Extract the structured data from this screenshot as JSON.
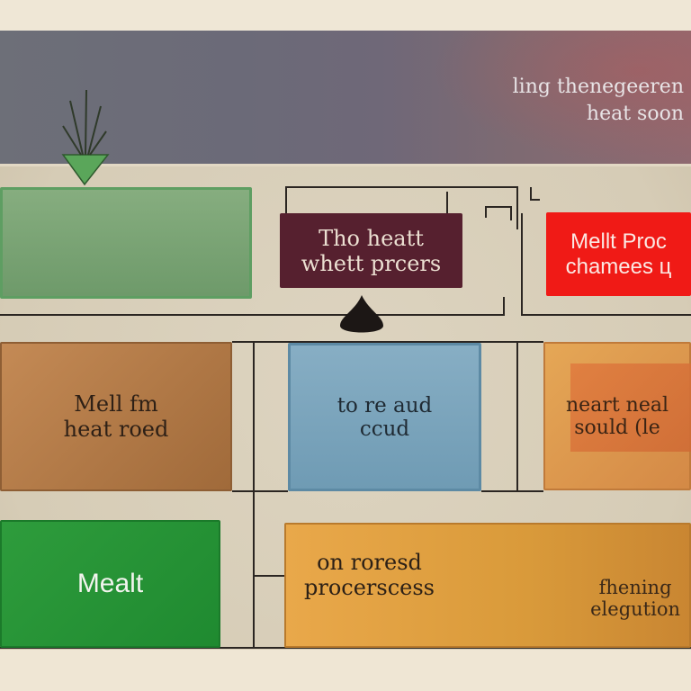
{
  "header": {
    "line1": "ling thenegeeren",
    "line2": "heat soon"
  },
  "boxes": {
    "maroon": {
      "line1": "Tho heatt",
      "line2": "whett prcers"
    },
    "red": {
      "line1": "Mellt Proc",
      "line2": "chamees ц"
    },
    "brown": {
      "line1": "Mell fm",
      "line2": "heat roed"
    },
    "blue": {
      "line1": "to re aud",
      "line2": "ccud"
    },
    "orange": {
      "line1": "neart neal",
      "line2": "sould (le"
    },
    "green_bottom": {
      "label": "Mealt"
    },
    "wide_orange_left": {
      "line1": "on roresd",
      "line2": "procerscess"
    },
    "wide_orange_right": {
      "line1": "fhening",
      "line2": "elegution"
    }
  },
  "colors": {
    "maroon": "#56202f",
    "red": "#f01a16",
    "green": "#2e9c3c",
    "blue": "#87aec4",
    "orange": "#e5a756"
  }
}
